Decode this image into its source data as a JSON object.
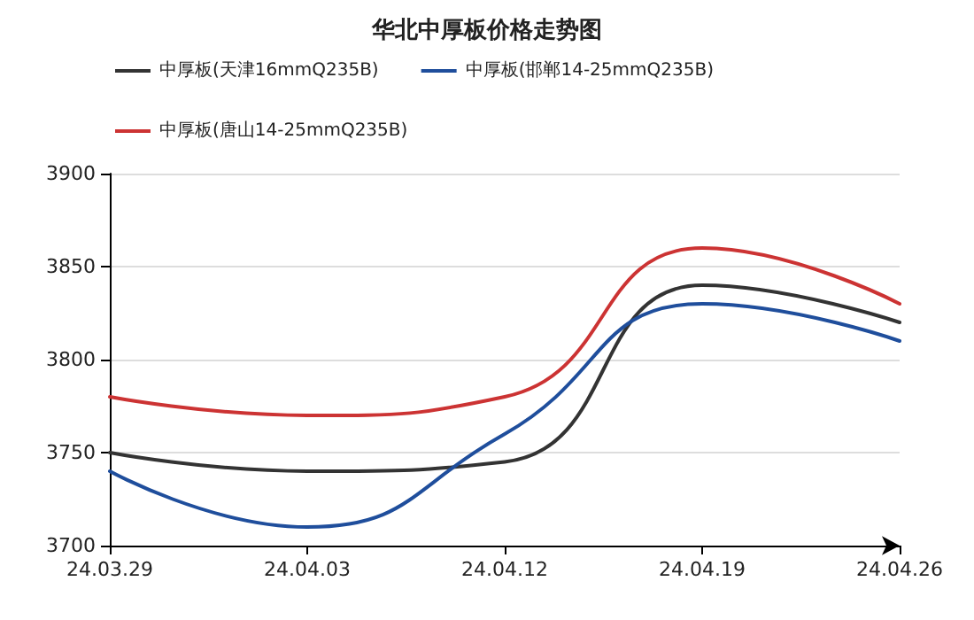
{
  "chart_data": {
    "type": "line",
    "title": "华北中厚板价格走势图",
    "categories": [
      "24.03.29",
      "24.04.03",
      "24.04.12",
      "24.04.19",
      "24.04.26"
    ],
    "series": [
      {
        "name": "中厚板(天津16mmQ235B)",
        "color": "#333333",
        "values": [
          3750,
          3740,
          3745,
          3840,
          3820
        ]
      },
      {
        "name": "中厚板(邯郸14-25mmQ235B)",
        "color": "#1f4e9c",
        "values": [
          3740,
          3710,
          3760,
          3830,
          3810
        ]
      },
      {
        "name": "中厚板(唐山14-25mmQ235B)",
        "color": "#cc3333",
        "values": [
          3780,
          3770,
          3780,
          3860,
          3830
        ]
      }
    ],
    "ylim": [
      3700,
      3900
    ],
    "yticks": [
      3700,
      3750,
      3800,
      3850,
      3900
    ],
    "grid": "y",
    "legend": "top",
    "marker": "none",
    "line_style": "solid"
  }
}
